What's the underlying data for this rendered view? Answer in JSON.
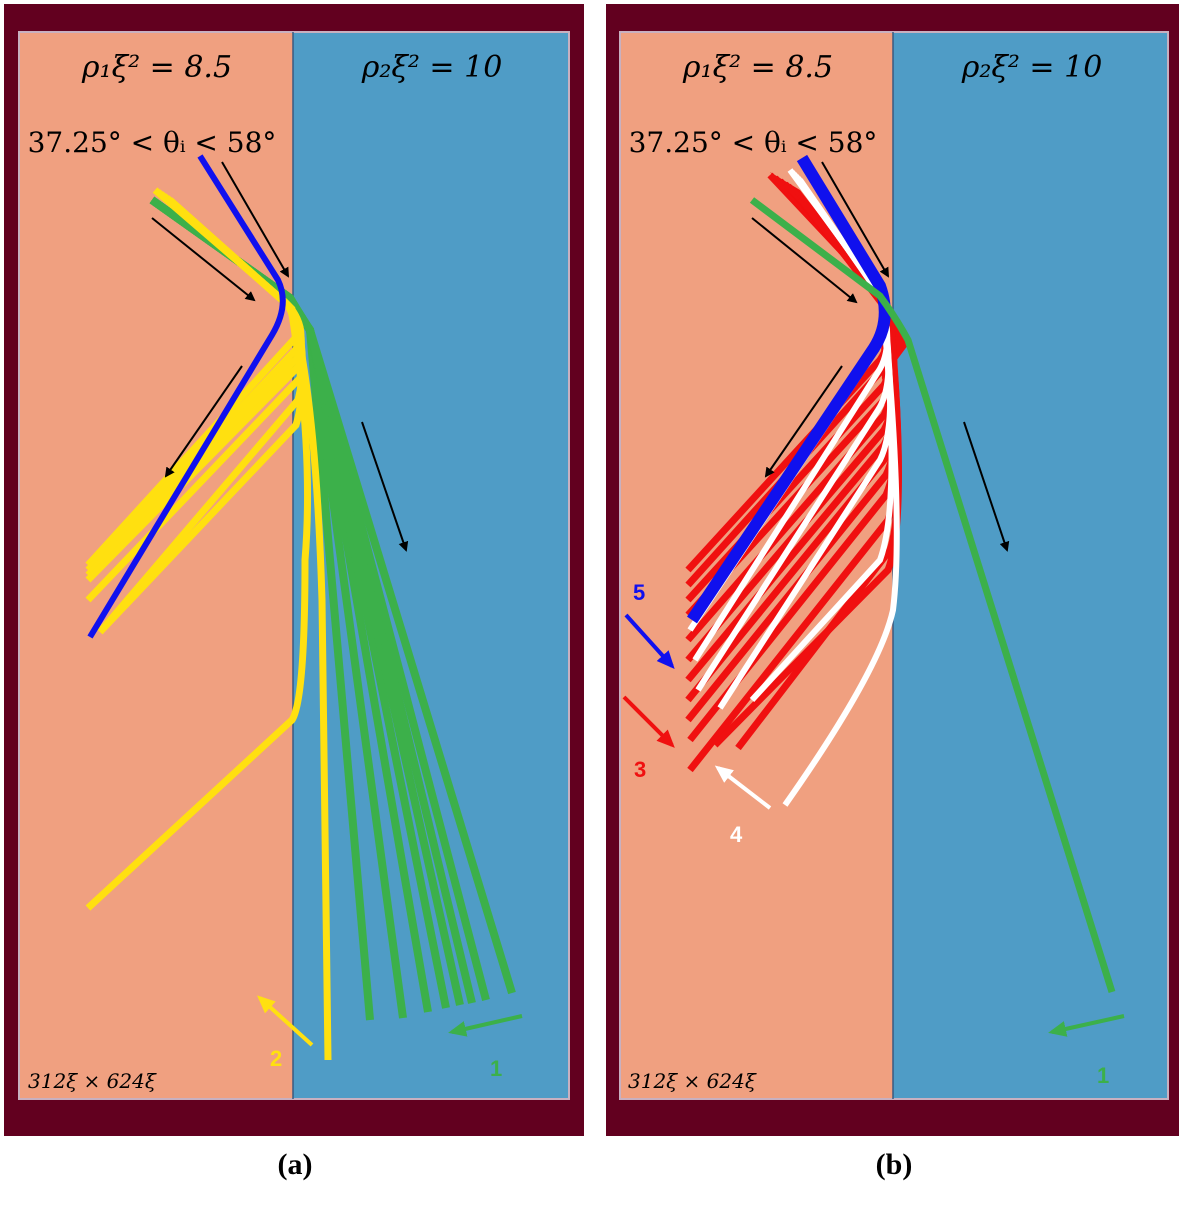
{
  "colors": {
    "frame": "#62001F",
    "medium1": "#F0A080",
    "medium2": "#4F9CC6",
    "ray_green": "#3CB04A",
    "ray_yellow": "#FFE010",
    "ray_blue": "#1010EE",
    "ray_red": "#F01010",
    "ray_white": "#FFFFFF",
    "arrow_black": "#000000"
  },
  "panels": [
    {
      "id": "a",
      "caption": "(a)",
      "medium1_label": "ρ₁ξ² = 8.5",
      "medium2_label": "ρ₂ξ² = 10",
      "angle_label": "37.25° < θᵢ < 58°",
      "size_label": "312ξ × 624ξ",
      "markers": [
        {
          "label": "2",
          "color": "#FFE010"
        },
        {
          "label": "1",
          "color": "#3CB04A"
        }
      ]
    },
    {
      "id": "b",
      "caption": "(b)",
      "medium1_label": "ρ₁ξ² = 8.5",
      "medium2_label": "ρ₂ξ² = 10",
      "angle_label": "37.25° < θᵢ < 58°",
      "size_label": "312ξ × 624ξ",
      "markers": [
        {
          "label": "5",
          "color": "#1010EE"
        },
        {
          "label": "3",
          "color": "#F01010"
        },
        {
          "label": "4",
          "color": "#FFFFFF"
        },
        {
          "label": "1",
          "color": "#3CB04A"
        }
      ]
    }
  ]
}
